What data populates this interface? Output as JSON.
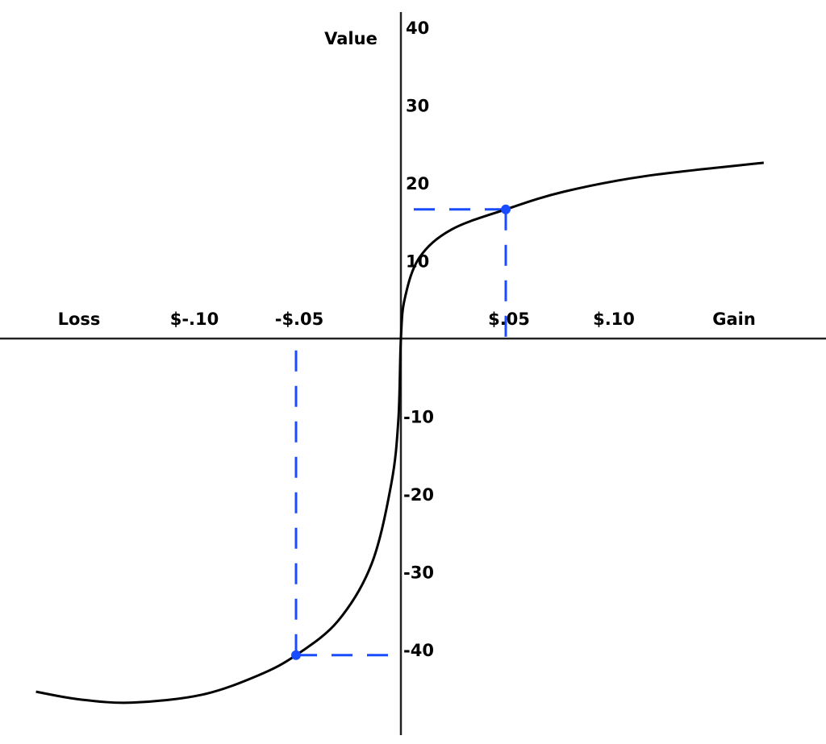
{
  "chart_data": {
    "type": "line",
    "ylabel": "Value",
    "x_left_label": "Loss",
    "x_right_label": "Gain",
    "x_ticks": [
      {
        "value": -0.1,
        "label": "$-.10"
      },
      {
        "value": -0.05,
        "label": "-$.05"
      },
      {
        "value": 0.05,
        "label": "$.05"
      },
      {
        "value": 0.1,
        "label": "$.10"
      }
    ],
    "y_ticks": [
      {
        "value": 40,
        "label": "40"
      },
      {
        "value": 30,
        "label": "30"
      },
      {
        "value": 20,
        "label": "20"
      },
      {
        "value": 10,
        "label": "10"
      },
      {
        "value": -10,
        "label": "-10"
      },
      {
        "value": -20,
        "label": "-20"
      },
      {
        "value": -30,
        "label": "-30"
      },
      {
        "value": -40,
        "label": "-40"
      }
    ],
    "xlim": [
      -0.19,
      0.203
    ],
    "ylim": [
      -51,
      43.5
    ],
    "grid": false,
    "curve": {
      "color": "#000000",
      "x": [
        -0.174,
        -0.153,
        -0.128,
        -0.095,
        -0.068,
        -0.05,
        -0.03,
        -0.014,
        -0.0046,
        -0.0012,
        0,
        0.0019,
        0.0088,
        0.024,
        0.05,
        0.078,
        0.117,
        0.173
      ],
      "y": [
        -45.4,
        -46.4,
        -46.8,
        -45.8,
        -43.3,
        -40.7,
        -36.3,
        -29.0,
        -18.7,
        -10.4,
        0,
        5.2,
        10.4,
        14.0,
        16.6,
        18.9,
        20.9,
        22.6
      ]
    },
    "marked_points": [
      {
        "x": 0.05,
        "y": 16.6
      },
      {
        "x": -0.05,
        "y": -40.7
      }
    ],
    "marker_color": "#1a4cff"
  }
}
